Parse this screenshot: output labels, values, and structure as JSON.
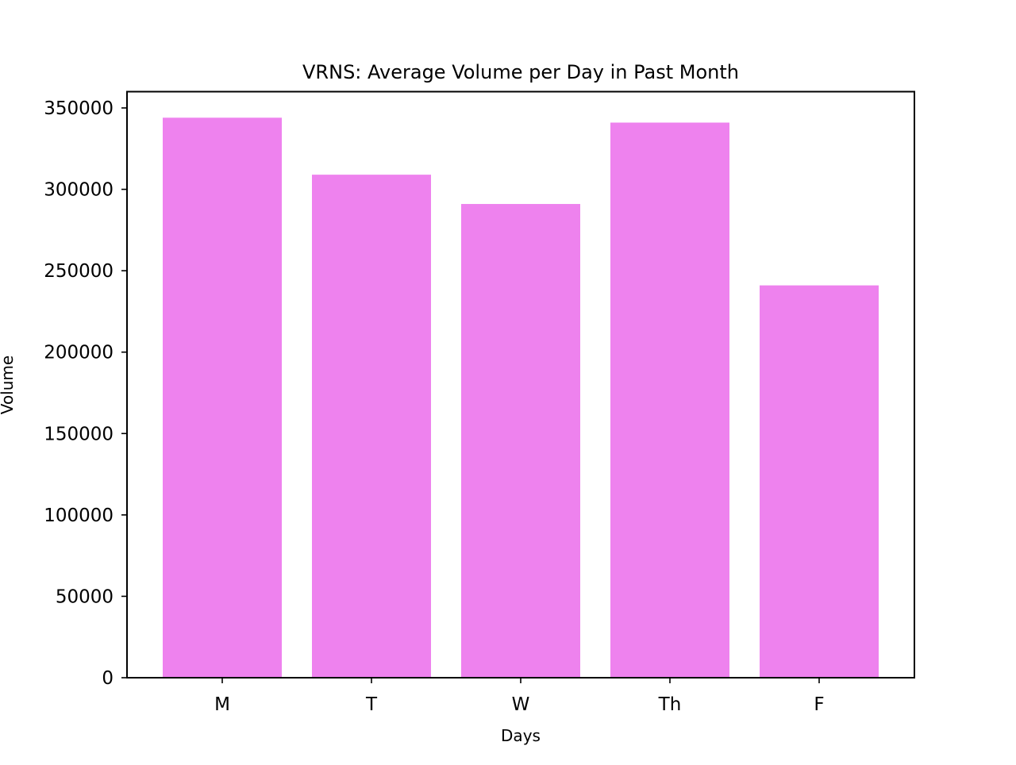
{
  "chart_data": {
    "type": "bar",
    "title": "VRNS: Average Volume per Day in Past Month",
    "xlabel": "Days",
    "ylabel": "Volume",
    "categories": [
      "M",
      "T",
      "W",
      "Th",
      "F"
    ],
    "values": [
      344000,
      309000,
      291000,
      341000,
      241000
    ],
    "ylim": [
      0,
      360000
    ],
    "yticks": [
      0,
      50000,
      100000,
      150000,
      200000,
      250000,
      300000,
      350000
    ],
    "grid": false,
    "legend": "none",
    "bar_color": "#ee82ee",
    "axis_color": "#000000"
  }
}
